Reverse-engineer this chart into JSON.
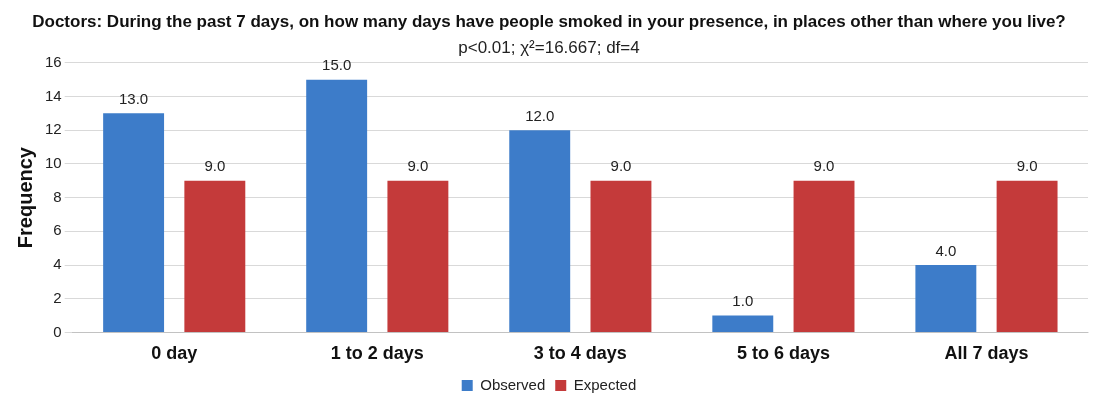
{
  "chart_data": {
    "type": "bar",
    "title": "Doctors: During the past 7 days, on how many days have people smoked in your presence, in places other than where you live?",
    "subtitle": "p<0.01; χ²=16.667; df=4",
    "ylabel": "Frequency",
    "categories": [
      "0 day",
      "1 to 2 days",
      "3 to 4 days",
      "5 to 6 days",
      "All 7 days"
    ],
    "series": [
      {
        "name": "Observed",
        "color": "#3d7cc9",
        "values": [
          13,
          15,
          12,
          1,
          4
        ],
        "value_labels": [
          "13.0",
          "15.0",
          "12.0",
          "1.0",
          "4.0"
        ]
      },
      {
        "name": "Expected",
        "color": "#c43a3a",
        "values": [
          9,
          9,
          9,
          9,
          9
        ],
        "value_labels": [
          "9.0",
          "9.0",
          "9.0",
          "9.0",
          "9.0"
        ]
      }
    ],
    "ylim": [
      0,
      16
    ],
    "yticks": [
      0,
      2,
      4,
      6,
      8,
      10,
      12,
      14,
      16
    ],
    "grid": "y",
    "legend": "bottom"
  }
}
